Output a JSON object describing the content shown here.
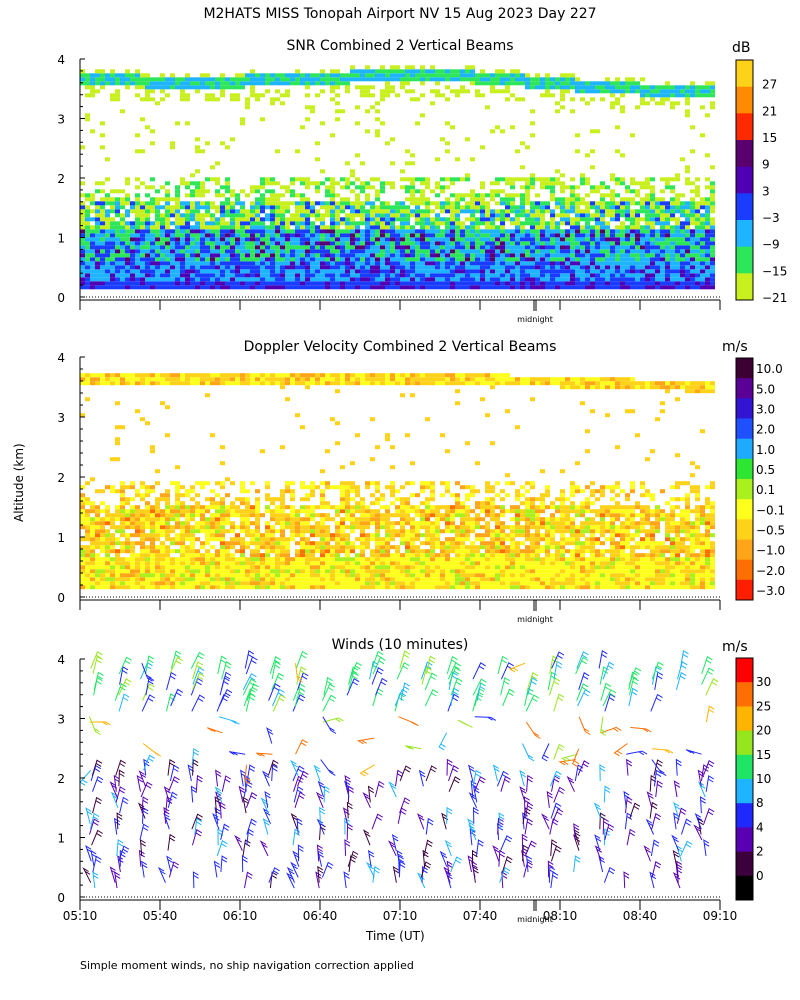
{
  "page": {
    "title": "M2HATS MISS Tonopah Airport NV  15 Aug 2023 Day 227",
    "ylabel": "Altitude (km)",
    "xlabel": "Time (UT)",
    "footnote": "Simple moment winds, no ship navigation correction applied",
    "midnight_label": "midnight"
  },
  "chart_data": [
    {
      "type": "heatmap",
      "title": "SNR Combined 2 Vertical Beams",
      "unit": "dB",
      "ylim": [
        0,
        4
      ],
      "yticks": [
        "0",
        "1",
        "2",
        "3",
        "4"
      ],
      "colorbar": {
        "labels": [
          "27",
          "21",
          "15",
          "9",
          "3",
          "−3",
          "−9",
          "−15",
          "−21"
        ],
        "colors": [
          "#ffd21a",
          "#ff8c00",
          "#ff2a00",
          "#5a006e",
          "#5000b4",
          "#1a3cff",
          "#1eb4ff",
          "#2ee65a",
          "#c8f01e"
        ]
      }
    },
    {
      "type": "heatmap",
      "title": "Doppler Velocity Combined 2 Vertical Beams",
      "unit": "m/s",
      "ylim": [
        0,
        4
      ],
      "yticks": [
        "0",
        "1",
        "2",
        "3",
        "4"
      ],
      "colorbar": {
        "labels": [
          "10.0",
          "5.0",
          "3.0",
          "2.0",
          "1.0",
          "0.5",
          "0.1",
          "−0.1",
          "−0.5",
          "−1.0",
          "−2.0",
          "−3.0"
        ],
        "colors": [
          "#3c0032",
          "#5a0096",
          "#3214d2",
          "#1e50ff",
          "#1eaaff",
          "#2ee632",
          "#aaf01e",
          "#ffff1e",
          "#ffd21a",
          "#ffa51a",
          "#ff6e00",
          "#ff1e00"
        ]
      }
    },
    {
      "type": "heatmap",
      "title": "Winds (10 minutes)",
      "unit": "m/s",
      "ylim": [
        0,
        4
      ],
      "yticks": [
        "0",
        "1",
        "2",
        "3",
        "4"
      ],
      "x_ticks": [
        "05:10",
        "05:40",
        "06:10",
        "06:40",
        "07:10",
        "07:40",
        "08:10",
        "08:40",
        "09:10"
      ],
      "colorbar": {
        "labels": [
          "30",
          "25",
          "20",
          "15",
          "10",
          "8",
          "4",
          "2",
          "0"
        ],
        "colors": [
          "#ff0000",
          "#ff6e00",
          "#ffb400",
          "#96e61e",
          "#1ee664",
          "#1eb4ff",
          "#1e28ff",
          "#5a00b4",
          "#3c003c",
          "#000000"
        ]
      }
    }
  ]
}
